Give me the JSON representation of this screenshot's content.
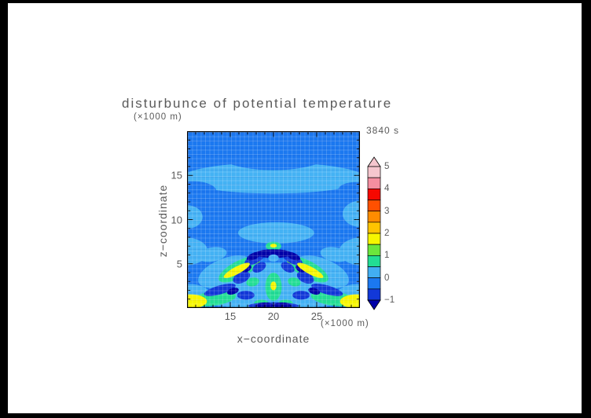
{
  "window": {
    "frame_color": "#000000",
    "canvas_color": "#ffffff"
  },
  "header": {
    "title": "disturbunce  of  potential  temperature",
    "y_units_label": "(×1000 m)",
    "time_label": "3840 s"
  },
  "axes": {
    "x": {
      "label": "x−coordinate",
      "units_label": "(×1000 m)",
      "min": 10,
      "max": 30,
      "major_ticks": [
        15,
        20,
        25
      ],
      "tick_labels": [
        "15",
        "20",
        "25"
      ],
      "minor_ticks": [
        11,
        12,
        13,
        14,
        16,
        17,
        18,
        19,
        21,
        22,
        23,
        24,
        26,
        27,
        28,
        29
      ]
    },
    "z": {
      "label": "z−coordinate",
      "min": 0,
      "max": 20,
      "major_ticks": [
        5,
        10,
        15
      ],
      "tick_labels": [
        "5",
        "10",
        "15"
      ],
      "minor_ticks": [
        1,
        2,
        3,
        4,
        6,
        7,
        8,
        9,
        11,
        12,
        13,
        14,
        16,
        17,
        18,
        19
      ]
    }
  },
  "colorbar": {
    "labels": [
      "5",
      "4",
      "3",
      "2",
      "1",
      "0",
      "−1"
    ],
    "label_values": [
      5,
      4,
      3,
      2,
      1,
      0,
      -1
    ],
    "over_color": "#F6C6CE",
    "under_color": "#0000A8",
    "colors_top_to_bottom": [
      "#F6C6CE",
      "#F58EA0",
      "#F60800",
      "#FF5000",
      "#FF8C00",
      "#FFC400",
      "#F6F600",
      "#6BE63C",
      "#22DD94",
      "#42AEF2",
      "#1B78F0",
      "#1238D8"
    ]
  },
  "chart_data": {
    "type": "heatmap",
    "subtype": "filled-contour",
    "title": "disturbunce of potential temperature",
    "xlabel": "x−coordinate (×1000 m)",
    "ylabel": "z−coordinate (×1000 m)",
    "annotation": "3840 s",
    "x_range": [
      10,
      30
    ],
    "z_range": [
      0,
      20
    ],
    "levels": [
      -1,
      -0.5,
      0,
      0.5,
      1,
      1.5,
      2,
      2.5,
      3,
      3.5,
      4,
      4.5,
      5
    ],
    "grid": true,
    "legend_position": "right-colorbar",
    "palette": {
      "bg": "#1B78F0",
      "cy": "#44B2F4",
      "mint": "#22DD94",
      "grn": "#6BE63C",
      "yel": "#F6F600",
      "db": "#1238D8",
      "nvy": "#0000A8"
    },
    "features": [
      "background field value between -0.5 and 0 (medium azure blue)",
      "light band (0 to 0.5) across full width between z=13 and z=16.5, dipping at center",
      "light blobs at left and right edges near z=10.5",
      "light ellipse centered x=20 z=8.5",
      "small mint cap with yellow core at x=20 z=7",
      "dark navy arcs (below -1) centered x=20 z=6",
      "symmetric mint-green wings with yellow streaks between z=3 and z=5",
      "deep blue (-1 to -0.5) blobs interleaved in lower region",
      "bright yellow patches in bottom-left and bottom-right corners",
      "navy patches along bottom center near z=0"
    ],
    "shapes_format": [
      "palette_key",
      "x_center",
      "z_center",
      "rx_x_units",
      "ry_z_units",
      "rotation_deg"
    ],
    "shapes": [
      [
        "cy",
        20,
        14.7,
        10.6,
        1.75,
        0
      ],
      [
        "bg",
        20,
        17.5,
        6.5,
        1.9,
        0
      ],
      [
        "bg",
        10.7,
        13.2,
        2.7,
        1.15,
        0
      ],
      [
        "bg",
        29.6,
        13.4,
        2.1,
        0.85,
        0
      ],
      [
        "cy",
        9.9,
        10.3,
        1.9,
        1.35,
        0
      ],
      [
        "cy",
        30.1,
        10.65,
        2.1,
        1.5,
        0
      ],
      [
        "cy",
        20.3,
        8.5,
        4.4,
        1.2,
        0
      ],
      [
        "cy",
        9.7,
        6.4,
        2.7,
        1.6,
        0
      ],
      [
        "cy",
        30.3,
        6.4,
        2.7,
        1.6,
        0
      ],
      [
        "cy",
        12.9,
        6.05,
        1.7,
        0.8,
        -10
      ],
      [
        "cy",
        27.1,
        6.05,
        1.7,
        0.8,
        10
      ],
      [
        "cy",
        20,
        3.0,
        7.9,
        2.15,
        0
      ],
      [
        "cy",
        14.4,
        4.1,
        3.3,
        1.5,
        -22
      ],
      [
        "cy",
        25.6,
        4.1,
        3.3,
        1.5,
        22
      ],
      [
        "cy",
        20,
        1.1,
        9.6,
        1.15,
        0
      ],
      [
        "cy",
        10.4,
        1.3,
        2.4,
        1.4,
        0
      ],
      [
        "cy",
        29.6,
        1.3,
        2.4,
        1.4,
        0
      ],
      [
        "mint",
        16.0,
        4.35,
        2.6,
        0.95,
        -28
      ],
      [
        "mint",
        24.0,
        4.35,
        2.6,
        0.95,
        28
      ],
      [
        "mint",
        13.0,
        1.05,
        2.7,
        0.8,
        -8
      ],
      [
        "mint",
        27.0,
        1.05,
        2.7,
        0.8,
        8
      ],
      [
        "mint",
        20,
        2.4,
        0.95,
        1.6,
        0
      ],
      [
        "mint",
        20,
        7.0,
        0.9,
        0.5,
        0
      ],
      [
        "mint",
        17.6,
        2.95,
        0.75,
        0.5,
        -15
      ],
      [
        "mint",
        22.4,
        2.95,
        0.75,
        0.5,
        15
      ],
      [
        "mint",
        18.6,
        0.5,
        0.85,
        0.45,
        0
      ],
      [
        "mint",
        21.4,
        0.5,
        0.85,
        0.45,
        0
      ],
      [
        "grn",
        17.9,
        5.35,
        0.55,
        0.35,
        0
      ],
      [
        "grn",
        22.1,
        5.35,
        0.55,
        0.35,
        0
      ],
      [
        "db",
        17.85,
        5.6,
        1.35,
        0.55,
        -30
      ],
      [
        "db",
        22.15,
        5.6,
        1.35,
        0.55,
        30
      ],
      [
        "db",
        16.3,
        3.45,
        1.05,
        0.6,
        -25
      ],
      [
        "db",
        23.7,
        3.45,
        1.05,
        0.6,
        25
      ],
      [
        "db",
        18.35,
        4.6,
        0.85,
        0.5,
        -30
      ],
      [
        "db",
        21.65,
        4.6,
        0.85,
        0.5,
        30
      ],
      [
        "db",
        13.8,
        2.05,
        1.9,
        0.5,
        -16
      ],
      [
        "db",
        26.2,
        2.05,
        1.9,
        0.5,
        16
      ],
      [
        "db",
        16.8,
        1.45,
        1.0,
        0.5,
        0
      ],
      [
        "db",
        23.2,
        1.45,
        1.0,
        0.5,
        0
      ],
      [
        "db",
        20,
        0.25,
        2.9,
        0.4,
        0
      ],
      [
        "nvy",
        20,
        6.15,
        2.1,
        0.5,
        0
      ],
      [
        "nvy",
        17.7,
        5.85,
        0.85,
        0.38,
        -25
      ],
      [
        "nvy",
        22.3,
        5.85,
        0.85,
        0.38,
        25
      ],
      [
        "cy",
        20,
        5.65,
        0.6,
        0.42,
        0
      ],
      [
        "nvy",
        16.9,
        4.45,
        0.6,
        0.35,
        -30
      ],
      [
        "nvy",
        23.1,
        4.45,
        0.6,
        0.35,
        30
      ],
      [
        "nvy",
        15.3,
        1.9,
        0.7,
        0.35,
        -18
      ],
      [
        "nvy",
        24.7,
        1.9,
        0.7,
        0.35,
        18
      ],
      [
        "nvy",
        19.0,
        0.3,
        0.95,
        0.33,
        0
      ],
      [
        "nvy",
        21.0,
        0.3,
        0.95,
        0.33,
        0
      ],
      [
        "yel",
        15.75,
        4.25,
        1.7,
        0.42,
        -28
      ],
      [
        "yel",
        24.25,
        4.25,
        1.7,
        0.42,
        28
      ],
      [
        "yel",
        10.35,
        0.75,
        1.95,
        0.8,
        0
      ],
      [
        "yel",
        29.65,
        0.75,
        1.95,
        0.8,
        0
      ],
      [
        "yel",
        20,
        2.5,
        0.34,
        0.5,
        0
      ],
      [
        "yel",
        20,
        7.05,
        0.38,
        0.22,
        0
      ]
    ]
  }
}
